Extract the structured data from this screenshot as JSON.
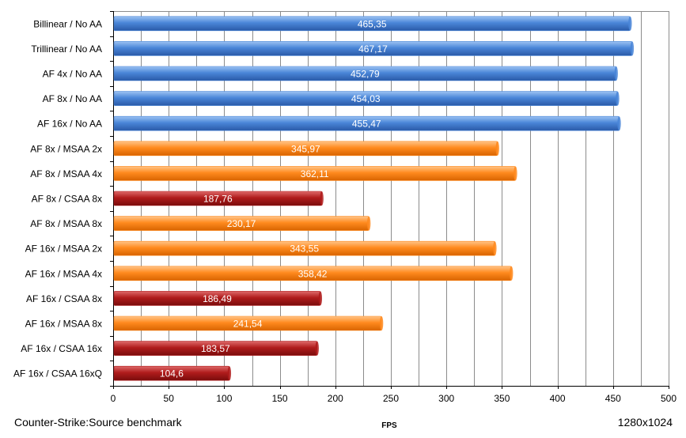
{
  "chart_data": {
    "type": "bar",
    "orientation": "horizontal",
    "categories": [
      "Billinear / No AA",
      "Trillinear / No AA",
      "AF 4x / No AA",
      "AF 8x / No AA",
      "AF 16x / No AA",
      "AF 8x / MSAA 2x",
      "AF 8x / MSAA 4x",
      "AF 8x / CSAA 8x",
      "AF 8x / MSAA 8x",
      "AF 16x / MSAA 2x",
      "AF 16x / MSAA 4x",
      "AF 16x / CSAA 8x",
      "AF 16x / MSAA 8x",
      "AF 16x / CSAA 16x",
      "AF 16x / CSAA 16xQ"
    ],
    "values": [
      465.35,
      467.17,
      452.79,
      454.03,
      455.47,
      345.97,
      362.11,
      187.76,
      230.17,
      343.55,
      358.42,
      186.49,
      241.54,
      183.57,
      104.6
    ],
    "value_labels": [
      "465,35",
      "467,17",
      "452,79",
      "454,03",
      "455,47",
      "345,97",
      "362,11",
      "187,76",
      "230,17",
      "343,55",
      "358,42",
      "186,49",
      "241,54",
      "183,57",
      "104,6"
    ],
    "bar_groups": [
      "no-aa",
      "no-aa",
      "no-aa",
      "no-aa",
      "no-aa",
      "msaa",
      "msaa",
      "csaa",
      "msaa",
      "msaa",
      "msaa",
      "csaa",
      "msaa",
      "csaa",
      "csaa"
    ],
    "group_colors": {
      "no-aa": "#4a86d8",
      "msaa": "#ff8a1e",
      "csaa": "#b01c1c"
    },
    "xlabel": "FPS",
    "xlim": [
      0,
      500
    ],
    "xticks": [
      0,
      50,
      100,
      150,
      200,
      250,
      300,
      350,
      400,
      450,
      500
    ],
    "grid": "vertical",
    "legend": "none"
  },
  "footer": {
    "left": "Counter-Strike:Source benchmark",
    "right": "1280x1024"
  }
}
